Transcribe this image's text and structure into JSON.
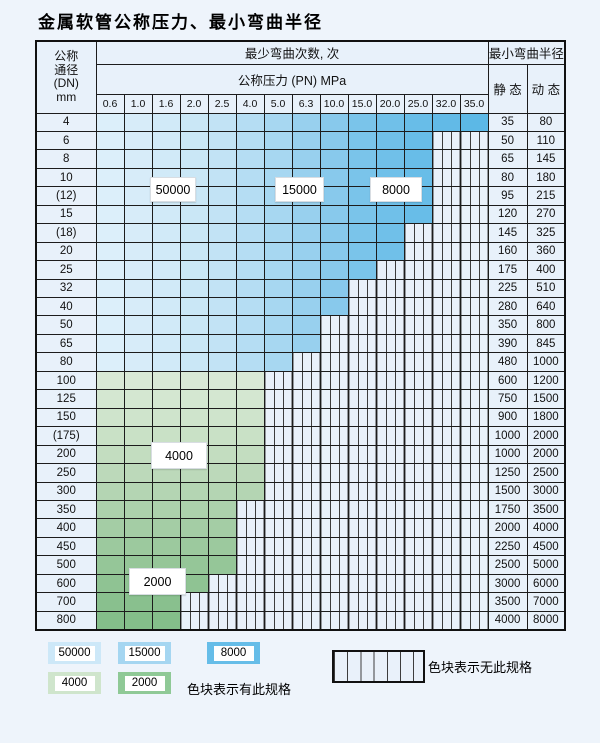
{
  "title": "金属软管公称压力、最小弯曲半径",
  "table": {
    "header": {
      "dn_lines": [
        "公称",
        "通径",
        "(DN)",
        "mm"
      ],
      "bend_cycles": "最少弯曲次数, 次",
      "radius_title": "最小弯曲半径",
      "pressure_title": "公称压力 (PN) MPa",
      "static_label": "静 态",
      "dynamic_label": "动 态",
      "pressure_values": [
        "0.6",
        "1.0",
        "1.6",
        "2.0",
        "2.5",
        "4.0",
        "5.0",
        "6.3",
        "10.0",
        "15.0",
        "20.0",
        "25.0",
        "32.0",
        "35.0"
      ]
    },
    "rows": [
      {
        "dn": "4",
        "palette": "blue",
        "spec_cols": 14,
        "static": "35",
        "dynamic": "80"
      },
      {
        "dn": "6",
        "palette": "blue",
        "spec_cols": 12,
        "static": "50",
        "dynamic": "110"
      },
      {
        "dn": "8",
        "palette": "blue",
        "spec_cols": 12,
        "static": "65",
        "dynamic": "145"
      },
      {
        "dn": "10",
        "palette": "blue",
        "spec_cols": 12,
        "static": "80",
        "dynamic": "180"
      },
      {
        "dn": "(12)",
        "palette": "blue",
        "spec_cols": 12,
        "static": "95",
        "dynamic": "215"
      },
      {
        "dn": "15",
        "palette": "blue",
        "spec_cols": 12,
        "static": "120",
        "dynamic": "270"
      },
      {
        "dn": "(18)",
        "palette": "blue",
        "spec_cols": 11,
        "static": "145",
        "dynamic": "325"
      },
      {
        "dn": "20",
        "palette": "blue",
        "spec_cols": 11,
        "static": "160",
        "dynamic": "360"
      },
      {
        "dn": "25",
        "palette": "blue",
        "spec_cols": 10,
        "static": "175",
        "dynamic": "400"
      },
      {
        "dn": "32",
        "palette": "blue",
        "spec_cols": 9,
        "static": "225",
        "dynamic": "510"
      },
      {
        "dn": "40",
        "palette": "blue",
        "spec_cols": 9,
        "static": "280",
        "dynamic": "640"
      },
      {
        "dn": "50",
        "palette": "blue",
        "spec_cols": 8,
        "static": "350",
        "dynamic": "800"
      },
      {
        "dn": "65",
        "palette": "blue",
        "spec_cols": 8,
        "static": "390",
        "dynamic": "845"
      },
      {
        "dn": "80",
        "palette": "blue",
        "spec_cols": 7,
        "static": "480",
        "dynamic": "1000"
      },
      {
        "dn": "100",
        "palette": "green",
        "spec_cols": 6,
        "static": "600",
        "dynamic": "1200"
      },
      {
        "dn": "125",
        "palette": "green",
        "spec_cols": 6,
        "static": "750",
        "dynamic": "1500"
      },
      {
        "dn": "150",
        "palette": "green",
        "spec_cols": 6,
        "static": "900",
        "dynamic": "1800"
      },
      {
        "dn": "(175)",
        "palette": "green",
        "spec_cols": 6,
        "static": "1000",
        "dynamic": "2000"
      },
      {
        "dn": "200",
        "palette": "green",
        "spec_cols": 6,
        "static": "1000",
        "dynamic": "2000"
      },
      {
        "dn": "250",
        "palette": "green",
        "spec_cols": 6,
        "static": "1250",
        "dynamic": "2500"
      },
      {
        "dn": "300",
        "palette": "green",
        "spec_cols": 6,
        "static": "1500",
        "dynamic": "3000"
      },
      {
        "dn": "350",
        "palette": "green",
        "spec_cols": 5,
        "static": "1750",
        "dynamic": "3500"
      },
      {
        "dn": "400",
        "palette": "green",
        "spec_cols": 5,
        "static": "2000",
        "dynamic": "4000"
      },
      {
        "dn": "450",
        "palette": "green",
        "spec_cols": 5,
        "static": "2250",
        "dynamic": "4500"
      },
      {
        "dn": "500",
        "palette": "green",
        "spec_cols": 5,
        "static": "2500",
        "dynamic": "5000"
      },
      {
        "dn": "600",
        "palette": "green",
        "spec_cols": 4,
        "static": "3000",
        "dynamic": "6000"
      },
      {
        "dn": "700",
        "palette": "green",
        "spec_cols": 3,
        "static": "3500",
        "dynamic": "7000"
      },
      {
        "dn": "800",
        "palette": "green",
        "spec_cols": 3,
        "static": "4000",
        "dynamic": "8000"
      }
    ]
  },
  "region_labels": {
    "l50000": "50000",
    "l15000": "15000",
    "l8000": "8000",
    "l4000": "4000",
    "l2000": "2000"
  },
  "legend": {
    "boxes": {
      "b50000": "50000",
      "b15000": "15000",
      "b8000": "8000",
      "b4000": "4000",
      "b2000": "2000"
    },
    "has_spec_text": "色块表示有此规格",
    "no_spec_text": "色块表示无此规格"
  },
  "colors": {
    "legend_50000": "#cde8f8",
    "legend_15000": "#a5d6f1",
    "legend_8000": "#66bde8",
    "legend_4000": "#cfe5cc",
    "legend_2000": "#8fc996",
    "blue_cols": [
      "#dceffa",
      "#d7ecf9",
      "#d1eaf8",
      "#cae7f6",
      "#c2e3f5",
      "#b5ddf3",
      "#a7d7f1",
      "#98d0ee",
      "#88c9ec",
      "#7ac4ea",
      "#70c0e9",
      "#68bde8",
      "#62bae7",
      "#5cb8e6"
    ],
    "green_rows": [
      "#d9e9d6",
      "#d4e7d1",
      "#cfe4cc",
      "#c9e1c6",
      "#c3ddc0",
      "#bcd9ba",
      "#b4d5b3",
      "#acd1ac",
      "#a4cda5",
      "#9cc99e",
      "#95c698",
      "#8fc393",
      "#89c08e",
      "#84be8a"
    ],
    "hatch_bg": "#e9f1fa",
    "hatch_line": "#3d3d3d",
    "grid_line": "#1c1c1c",
    "panel_bg": "#e8f1fa",
    "page_bg": "#eef4fb"
  }
}
